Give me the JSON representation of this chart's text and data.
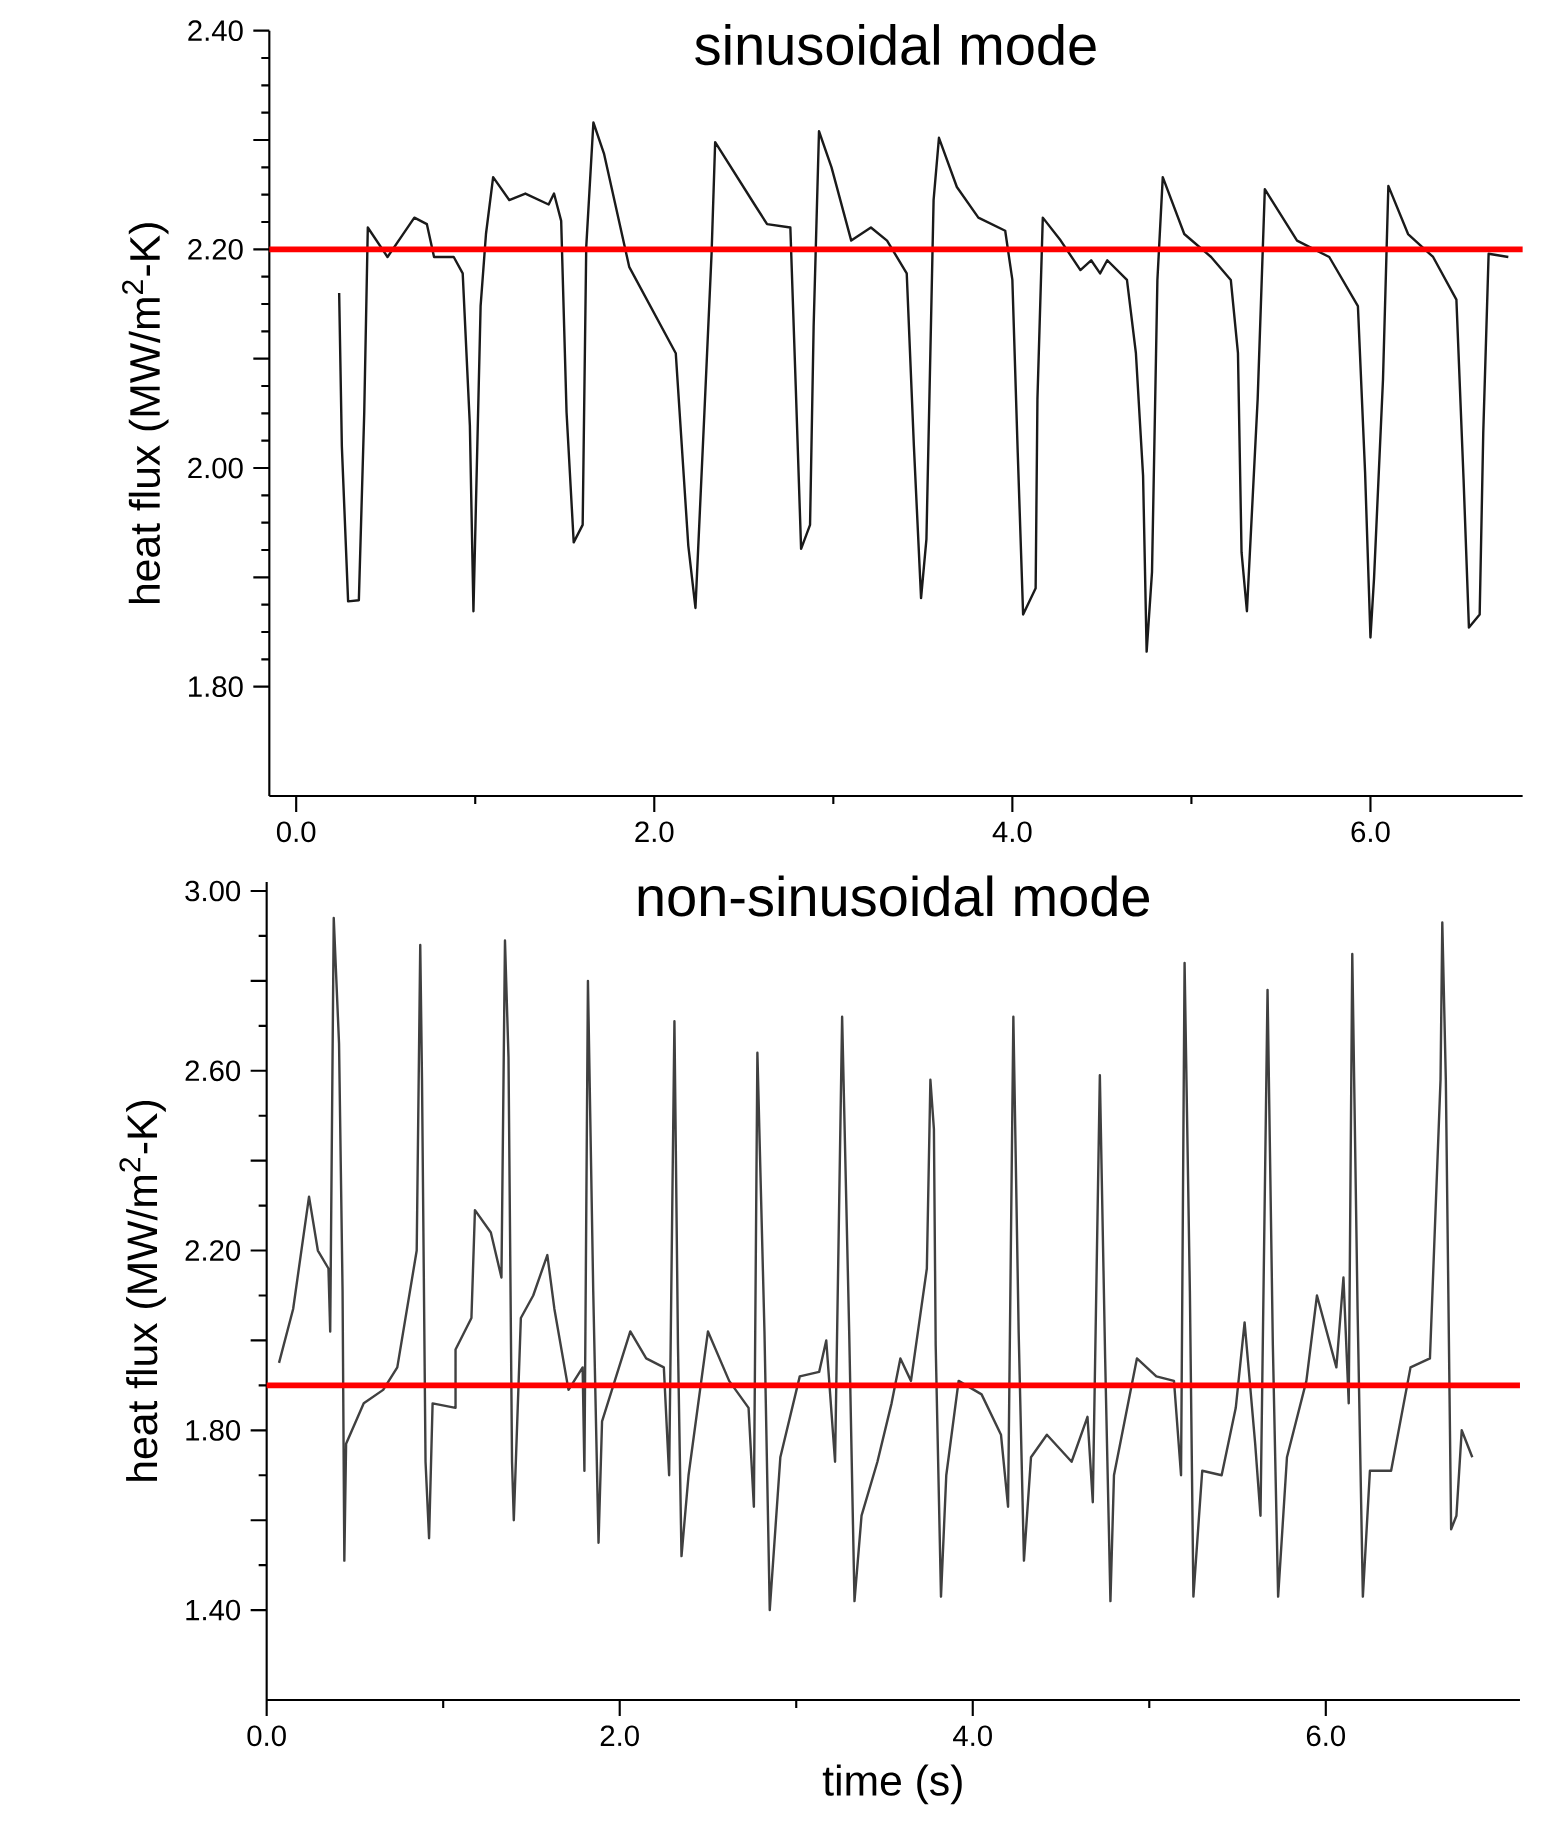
{
  "chart_data": [
    {
      "type": "line",
      "title": "sinusoidal mode",
      "ylabel": "heat flux (MW/m$^{2}$-K)",
      "xlim": [
        -0.15,
        6.85
      ],
      "ylim": [
        1.7,
        2.4
      ],
      "xticks": [
        {
          "value": 0,
          "label": "0.0"
        },
        {
          "value": 2,
          "label": "2.0"
        },
        {
          "value": 4,
          "label": "4.0"
        },
        {
          "value": 6,
          "label": "6.0"
        }
      ],
      "yticks": [
        {
          "value": 1.8,
          "label": "1.80"
        },
        {
          "value": 1.9,
          "label": null
        },
        {
          "value": 2.0,
          "label": "2.00"
        },
        {
          "value": 2.1,
          "label": null
        },
        {
          "value": 2.2,
          "label": "2.20"
        },
        {
          "value": 2.3,
          "label": null
        },
        {
          "value": 2.4,
          "label": "2.40"
        }
      ],
      "ref_lines": [
        {
          "axis": "y",
          "value": 2.2,
          "color": "#ff0000"
        }
      ],
      "series": [
        {
          "color": "#1a1a1a",
          "x": [
            0.24,
            0.255,
            0.29,
            0.35,
            0.38,
            0.4,
            0.51,
            0.66,
            0.73,
            0.77,
            0.88,
            0.93,
            0.97,
            0.99,
            1.03,
            1.06,
            1.1,
            1.19,
            1.28,
            1.41,
            1.44,
            1.48,
            1.51,
            1.55,
            1.6,
            1.62,
            1.66,
            1.72,
            1.86,
            2.12,
            2.19,
            2.23,
            2.28,
            2.32,
            2.34,
            2.56,
            2.63,
            2.76,
            2.79,
            2.82,
            2.87,
            2.89,
            2.92,
            2.99,
            3.1,
            3.21,
            3.3,
            3.41,
            3.45,
            3.49,
            3.52,
            3.56,
            3.59,
            3.69,
            3.81,
            3.96,
            4.0,
            4.03,
            4.06,
            4.13,
            4.14,
            4.17,
            4.27,
            4.38,
            4.44,
            4.49,
            4.53,
            4.64,
            4.69,
            4.73,
            4.75,
            4.78,
            4.81,
            4.84,
            4.96,
            5.11,
            5.22,
            5.26,
            5.28,
            5.31,
            5.37,
            5.41,
            5.59,
            5.77,
            5.93,
            5.97,
            6.0,
            6.02,
            6.07,
            6.1,
            6.21,
            6.35,
            6.48,
            6.52,
            6.55,
            6.61,
            6.63,
            6.66,
            6.77
          ],
          "values": [
            2.16,
            2.02,
            1.878,
            1.879,
            2.05,
            2.22,
            2.193,
            2.229,
            2.223,
            2.193,
            2.193,
            2.178,
            2.039,
            1.869,
            2.148,
            2.214,
            2.266,
            2.245,
            2.251,
            2.241,
            2.251,
            2.226,
            2.051,
            1.932,
            1.948,
            2.202,
            2.316,
            2.287,
            2.184,
            2.105,
            1.929,
            1.872,
            2.051,
            2.196,
            2.298,
            2.241,
            2.223,
            2.22,
            2.075,
            1.926,
            1.948,
            2.129,
            2.308,
            2.275,
            2.208,
            2.22,
            2.208,
            2.178,
            2.02,
            1.881,
            1.935,
            2.245,
            2.302,
            2.257,
            2.229,
            2.217,
            2.172,
            2.014,
            1.866,
            1.89,
            2.063,
            2.229,
            2.208,
            2.181,
            2.19,
            2.178,
            2.19,
            2.172,
            2.105,
            1.993,
            1.832,
            1.905,
            2.172,
            2.266,
            2.214,
            2.193,
            2.172,
            2.105,
            1.923,
            1.869,
            2.063,
            2.255,
            2.208,
            2.193,
            2.148,
            1.996,
            1.845,
            1.899,
            2.081,
            2.258,
            2.214,
            2.193,
            2.154,
            1.99,
            1.854,
            1.866,
            2.032,
            2.196,
            2.193
          ]
        }
      ]
    },
    {
      "type": "line",
      "title": "non-sinusoidal mode",
      "ylabel": "heat flux (MW/m$^{2}$-K)",
      "xlabel": "time (s)",
      "xlim": [
        0,
        7.1
      ],
      "ylim": [
        1.2,
        3.02
      ],
      "xticks": [
        {
          "value": 0,
          "label": "0.0"
        },
        {
          "value": 2,
          "label": "2.0"
        },
        {
          "value": 4,
          "label": "4.0"
        },
        {
          "value": 6,
          "label": "6.0"
        }
      ],
      "yticks": [
        {
          "value": 1.4,
          "label": "1.40"
        },
        {
          "value": 1.6,
          "label": null
        },
        {
          "value": 1.8,
          "label": "1.80"
        },
        {
          "value": 2.0,
          "label": null
        },
        {
          "value": 2.2,
          "label": "2.20"
        },
        {
          "value": 2.4,
          "label": null
        },
        {
          "value": 2.6,
          "label": "2.60"
        },
        {
          "value": 2.8,
          "label": null
        },
        {
          "value": 3.0,
          "label": "3.00"
        }
      ],
      "ref_lines": [
        {
          "axis": "y",
          "value": 1.9,
          "color": "#ff0000"
        }
      ],
      "series": [
        {
          "color": "#404040",
          "x": [
            0.07,
            0.15,
            0.24,
            0.29,
            0.35,
            0.36,
            0.38,
            0.41,
            0.43,
            0.44,
            0.45,
            0.55,
            0.66,
            0.74,
            0.85,
            0.87,
            0.88,
            0.9,
            0.92,
            0.94,
            1.07,
            1.07,
            1.16,
            1.18,
            1.27,
            1.33,
            1.35,
            1.37,
            1.39,
            1.4,
            1.44,
            1.51,
            1.59,
            1.63,
            1.71,
            1.79,
            1.8,
            1.82,
            1.85,
            1.88,
            1.9,
            2.06,
            2.15,
            2.25,
            2.28,
            2.31,
            2.33,
            2.35,
            2.39,
            2.5,
            2.62,
            2.73,
            2.76,
            2.78,
            2.82,
            2.85,
            2.91,
            3.02,
            3.13,
            3.17,
            3.22,
            3.26,
            3.3,
            3.33,
            3.37,
            3.46,
            3.54,
            3.59,
            3.65,
            3.74,
            3.76,
            3.78,
            3.79,
            3.82,
            3.85,
            3.92,
            4.05,
            4.16,
            4.2,
            4.23,
            4.26,
            4.29,
            4.33,
            4.42,
            4.56,
            4.65,
            4.68,
            4.72,
            4.75,
            4.78,
            4.8,
            4.93,
            5.04,
            5.14,
            5.18,
            5.2,
            5.23,
            5.25,
            5.3,
            5.41,
            5.49,
            5.54,
            5.6,
            5.63,
            5.67,
            5.7,
            5.73,
            5.78,
            5.89,
            5.95,
            6.06,
            6.1,
            6.13,
            6.15,
            6.18,
            6.21,
            6.25,
            6.37,
            6.48,
            6.59,
            6.65,
            6.66,
            6.68,
            6.71,
            6.74,
            6.77,
            6.83
          ],
          "values": [
            1.95,
            2.07,
            2.32,
            2.2,
            2.16,
            2.02,
            2.94,
            2.66,
            2.11,
            1.51,
            1.77,
            1.86,
            1.89,
            1.94,
            2.2,
            2.88,
            2.58,
            1.73,
            1.56,
            1.86,
            1.85,
            1.98,
            2.05,
            2.29,
            2.24,
            2.14,
            2.89,
            2.63,
            1.73,
            1.6,
            2.05,
            2.1,
            2.19,
            2.07,
            1.89,
            1.94,
            1.71,
            2.8,
            2.11,
            1.55,
            1.82,
            2.02,
            1.96,
            1.94,
            1.7,
            2.71,
            1.99,
            1.52,
            1.7,
            2.02,
            1.91,
            1.85,
            1.63,
            2.64,
            2.02,
            1.4,
            1.74,
            1.92,
            1.93,
            2.0,
            1.73,
            2.72,
            2.02,
            1.42,
            1.61,
            1.73,
            1.86,
            1.96,
            1.91,
            2.16,
            2.58,
            2.47,
            1.99,
            1.43,
            1.7,
            1.91,
            1.88,
            1.79,
            1.63,
            2.72,
            2.02,
            1.51,
            1.74,
            1.79,
            1.73,
            1.83,
            1.64,
            2.59,
            1.96,
            1.42,
            1.7,
            1.96,
            1.92,
            1.91,
            1.7,
            2.84,
            2.11,
            1.43,
            1.71,
            1.7,
            1.85,
            2.04,
            1.77,
            1.61,
            2.78,
            1.99,
            1.43,
            1.74,
            1.91,
            2.1,
            1.94,
            2.14,
            1.86,
            2.86,
            2.07,
            1.43,
            1.71,
            1.71,
            1.94,
            1.96,
            2.58,
            2.93,
            2.58,
            1.58,
            1.61,
            1.8,
            1.74
          ]
        }
      ]
    }
  ]
}
